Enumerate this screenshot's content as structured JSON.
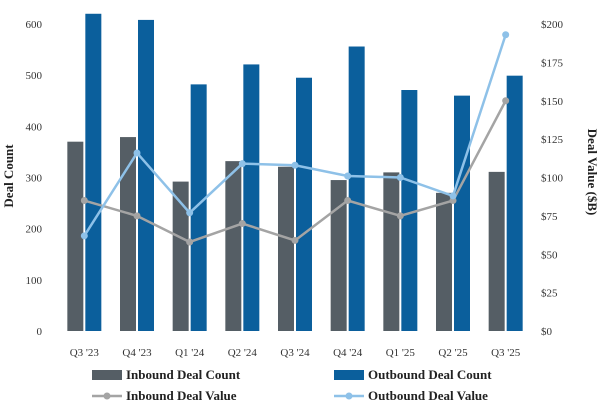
{
  "chart_data": {
    "type": "bar",
    "title": "",
    "categories": [
      "Q3 '23",
      "Q4 '23",
      "Q1 '24",
      "Q2 '24",
      "Q3 '24",
      "Q4 '24",
      "Q1 '25",
      "Q2 '25",
      "Q3 '25"
    ],
    "series": [
      {
        "name": "Inbound Deal Count",
        "kind": "bar",
        "axis": "left",
        "color": "#555e65",
        "values": [
          370,
          379,
          292,
          332,
          321,
          295,
          310,
          270,
          311
        ]
      },
      {
        "name": "Outbound Deal Count",
        "kind": "bar",
        "axis": "left",
        "color": "#0b5f9c",
        "values": [
          620,
          608,
          482,
          521,
          495,
          556,
          471,
          460,
          499
        ]
      },
      {
        "name": "Inbound Deal Value",
        "kind": "line",
        "axis": "right",
        "color": "#a4a4a4",
        "values": [
          85,
          75,
          58,
          70,
          59,
          85,
          75,
          85,
          150
        ]
      },
      {
        "name": "Outbound Deal Value",
        "kind": "line",
        "axis": "right",
        "color": "#8ec1e8",
        "values": [
          62,
          116,
          77,
          109,
          108,
          101,
          100,
          88,
          193
        ]
      }
    ],
    "ylabel": "Deal Count",
    "y2label": "Deal Value ($B)",
    "ylim": [
      0,
      600
    ],
    "y2lim": [
      0,
      200
    ],
    "yticks": [
      "0",
      "100",
      "200",
      "300",
      "400",
      "500",
      "600"
    ],
    "y2ticks": [
      "$0",
      "$25",
      "$50",
      "$75",
      "$100",
      "$125",
      "$150",
      "$175",
      "$200"
    ],
    "legend": "bottom",
    "grid": false
  }
}
